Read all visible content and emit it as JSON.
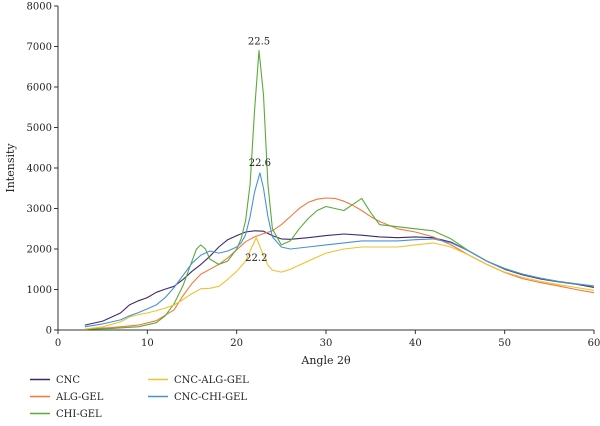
{
  "chart_data": {
    "type": "line",
    "xlabel": "Angle 2θ",
    "ylabel": "Intensity",
    "xlim": [
      0,
      60
    ],
    "ylim": [
      0,
      8000
    ],
    "xticks": [
      0,
      10,
      20,
      30,
      40,
      50,
      60
    ],
    "yticks": [
      0,
      1000,
      2000,
      3000,
      4000,
      5000,
      6000,
      7000,
      8000
    ],
    "grid": false,
    "legend_position": "bottom-left",
    "series": [
      {
        "name": "CNC",
        "color": "#3d2a6e",
        "points": [
          [
            3,
            120
          ],
          [
            5,
            220
          ],
          [
            7,
            420
          ],
          [
            8,
            620
          ],
          [
            9,
            720
          ],
          [
            10,
            800
          ],
          [
            11,
            930
          ],
          [
            12,
            1010
          ],
          [
            13,
            1080
          ],
          [
            14,
            1250
          ],
          [
            15,
            1450
          ],
          [
            16,
            1620
          ],
          [
            17,
            1820
          ],
          [
            18,
            2050
          ],
          [
            19,
            2230
          ],
          [
            20,
            2330
          ],
          [
            21,
            2420
          ],
          [
            22,
            2450
          ],
          [
            23,
            2440
          ],
          [
            24,
            2330
          ],
          [
            25,
            2250
          ],
          [
            26,
            2240
          ],
          [
            28,
            2280
          ],
          [
            30,
            2330
          ],
          [
            32,
            2370
          ],
          [
            34,
            2340
          ],
          [
            36,
            2300
          ],
          [
            38,
            2280
          ],
          [
            40,
            2300
          ],
          [
            42,
            2280
          ],
          [
            44,
            2170
          ],
          [
            46,
            1950
          ],
          [
            48,
            1700
          ],
          [
            50,
            1500
          ],
          [
            52,
            1360
          ],
          [
            54,
            1260
          ],
          [
            56,
            1190
          ],
          [
            58,
            1130
          ],
          [
            60,
            1050
          ]
        ]
      },
      {
        "name": "ALG-GEL",
        "color": "#ef7a3a",
        "points": [
          [
            3,
            20
          ],
          [
            6,
            60
          ],
          [
            9,
            120
          ],
          [
            11,
            230
          ],
          [
            13,
            500
          ],
          [
            14,
            850
          ],
          [
            15,
            1150
          ],
          [
            16,
            1380
          ],
          [
            17,
            1500
          ],
          [
            18,
            1620
          ],
          [
            19,
            1780
          ],
          [
            20,
            1980
          ],
          [
            21,
            2180
          ],
          [
            22,
            2300
          ],
          [
            23,
            2380
          ],
          [
            24,
            2450
          ],
          [
            25,
            2600
          ],
          [
            26,
            2800
          ],
          [
            27,
            3000
          ],
          [
            28,
            3150
          ],
          [
            29,
            3230
          ],
          [
            30,
            3260
          ],
          [
            31,
            3250
          ],
          [
            32,
            3180
          ],
          [
            33,
            3080
          ],
          [
            34,
            2950
          ],
          [
            35,
            2800
          ],
          [
            36,
            2680
          ],
          [
            38,
            2500
          ],
          [
            40,
            2420
          ],
          [
            42,
            2300
          ],
          [
            44,
            2100
          ],
          [
            46,
            1850
          ],
          [
            48,
            1620
          ],
          [
            50,
            1420
          ],
          [
            52,
            1270
          ],
          [
            54,
            1170
          ],
          [
            56,
            1090
          ],
          [
            58,
            1000
          ],
          [
            60,
            920
          ]
        ]
      },
      {
        "name": "CHI-GEL",
        "color": "#5aaa3a",
        "points": [
          [
            3,
            20
          ],
          [
            6,
            40
          ],
          [
            9,
            80
          ],
          [
            11,
            180
          ],
          [
            12,
            350
          ],
          [
            13,
            650
          ],
          [
            14,
            1100
          ],
          [
            15,
            1700
          ],
          [
            15.5,
            2000
          ],
          [
            16,
            2100
          ],
          [
            16.5,
            2000
          ],
          [
            17,
            1750
          ],
          [
            18,
            1620
          ],
          [
            19,
            1700
          ],
          [
            20,
            2000
          ],
          [
            20.5,
            2250
          ],
          [
            21,
            2700
          ],
          [
            21.5,
            3600
          ],
          [
            22,
            5400
          ],
          [
            22.5,
            6900
          ],
          [
            23,
            5800
          ],
          [
            23.5,
            3600
          ],
          [
            24,
            2500
          ],
          [
            25,
            2100
          ],
          [
            26,
            2200
          ],
          [
            27,
            2500
          ],
          [
            28,
            2750
          ],
          [
            29,
            2950
          ],
          [
            30,
            3050
          ],
          [
            31,
            3000
          ],
          [
            32,
            2950
          ],
          [
            33,
            3100
          ],
          [
            34,
            3250
          ],
          [
            35,
            2900
          ],
          [
            36,
            2600
          ],
          [
            38,
            2550
          ],
          [
            40,
            2500
          ],
          [
            42,
            2450
          ],
          [
            44,
            2250
          ],
          [
            46,
            1950
          ],
          [
            48,
            1700
          ],
          [
            50,
            1520
          ],
          [
            52,
            1380
          ],
          [
            54,
            1280
          ],
          [
            56,
            1200
          ],
          [
            58,
            1140
          ],
          [
            60,
            1080
          ]
        ]
      },
      {
        "name": "CNC-ALG-GEL",
        "color": "#f2c12e",
        "points": [
          [
            3,
            20
          ],
          [
            5,
            80
          ],
          [
            7,
            200
          ],
          [
            8,
            320
          ],
          [
            9,
            380
          ],
          [
            10,
            420
          ],
          [
            11,
            480
          ],
          [
            12,
            540
          ],
          [
            13,
            620
          ],
          [
            14,
            750
          ],
          [
            15,
            900
          ],
          [
            16,
            1020
          ],
          [
            17,
            1030
          ],
          [
            18,
            1080
          ],
          [
            19,
            1250
          ],
          [
            20,
            1450
          ],
          [
            21,
            1700
          ],
          [
            21.7,
            2050
          ],
          [
            22.2,
            2280
          ],
          [
            22.8,
            1950
          ],
          [
            23.5,
            1600
          ],
          [
            24,
            1480
          ],
          [
            25,
            1430
          ],
          [
            26,
            1500
          ],
          [
            28,
            1700
          ],
          [
            30,
            1900
          ],
          [
            32,
            2000
          ],
          [
            34,
            2050
          ],
          [
            36,
            2050
          ],
          [
            38,
            2050
          ],
          [
            40,
            2100
          ],
          [
            42,
            2150
          ],
          [
            44,
            2050
          ],
          [
            46,
            1850
          ],
          [
            48,
            1620
          ],
          [
            50,
            1430
          ],
          [
            52,
            1300
          ],
          [
            54,
            1200
          ],
          [
            56,
            1120
          ],
          [
            58,
            1050
          ],
          [
            60,
            980
          ]
        ]
      },
      {
        "name": "CNC-CHI-GEL",
        "color": "#4a90d9",
        "points": [
          [
            3,
            80
          ],
          [
            5,
            150
          ],
          [
            7,
            250
          ],
          [
            8,
            350
          ],
          [
            9,
            430
          ],
          [
            10,
            520
          ],
          [
            11,
            620
          ],
          [
            12,
            800
          ],
          [
            13,
            1050
          ],
          [
            14,
            1350
          ],
          [
            15,
            1650
          ],
          [
            16,
            1850
          ],
          [
            17,
            1950
          ],
          [
            18,
            1900
          ],
          [
            19,
            1950
          ],
          [
            20,
            2050
          ],
          [
            20.5,
            2150
          ],
          [
            21,
            2350
          ],
          [
            21.5,
            2800
          ],
          [
            22,
            3400
          ],
          [
            22.6,
            3880
          ],
          [
            23,
            3500
          ],
          [
            23.5,
            2800
          ],
          [
            24,
            2300
          ],
          [
            25,
            2050
          ],
          [
            26,
            2000
          ],
          [
            28,
            2050
          ],
          [
            30,
            2100
          ],
          [
            32,
            2150
          ],
          [
            34,
            2200
          ],
          [
            36,
            2200
          ],
          [
            38,
            2200
          ],
          [
            40,
            2230
          ],
          [
            42,
            2250
          ],
          [
            44,
            2150
          ],
          [
            46,
            1950
          ],
          [
            48,
            1700
          ],
          [
            50,
            1510
          ],
          [
            52,
            1380
          ],
          [
            54,
            1280
          ],
          [
            56,
            1200
          ],
          [
            58,
            1140
          ],
          [
            60,
            1090
          ]
        ]
      }
    ],
    "annotations": [
      {
        "text": "22.5",
        "x": 22.5,
        "y": 7050
      },
      {
        "text": "22.6",
        "x": 22.6,
        "y": 4050
      },
      {
        "text": "22.2",
        "x": 22.2,
        "y": 1700
      }
    ]
  }
}
